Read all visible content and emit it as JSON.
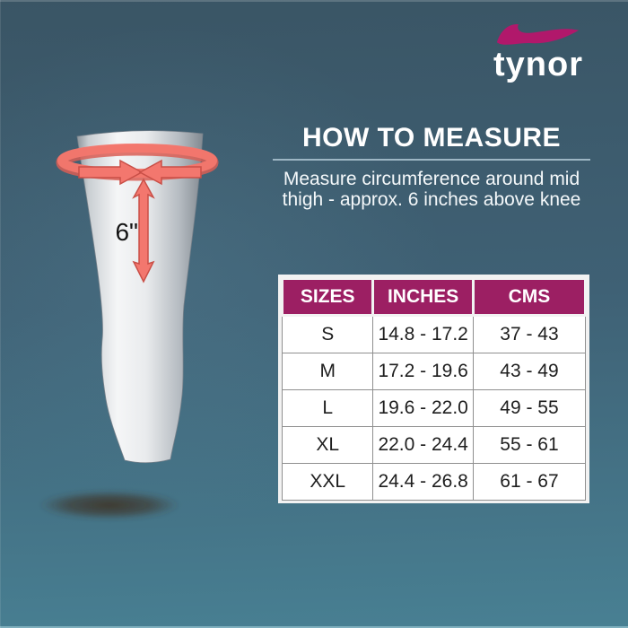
{
  "brand": {
    "name": "tynor"
  },
  "how_to_measure": {
    "title": "HOW TO MEASURE",
    "description_lines": [
      "Measure circumference around mid",
      "thigh - approx. 6 inches above knee"
    ]
  },
  "illustration": {
    "subject": "thigh-with-measuring-band",
    "measurement_label": "6\""
  },
  "chart_data": {
    "type": "table",
    "title": "HOW TO MEASURE",
    "columns": [
      "SIZES",
      "INCHES",
      "CMS"
    ],
    "rows": [
      [
        "S",
        "14.8 - 17.2",
        "37 - 43"
      ],
      [
        "M",
        "17.2 - 19.6",
        "43 - 49"
      ],
      [
        "L",
        "19.6 - 22.0",
        "49 - 55"
      ],
      [
        "XL",
        "22.0 - 24.4",
        "55 - 61"
      ],
      [
        "XXL",
        "24.4 - 26.8",
        "61 - 67"
      ]
    ]
  },
  "colors": {
    "background_top": "#3A5565",
    "background_bottom": "#488093",
    "table_header_bg": "#9C1F63",
    "brand_swoosh": "#B1186B",
    "arrow": "#F3776E"
  }
}
